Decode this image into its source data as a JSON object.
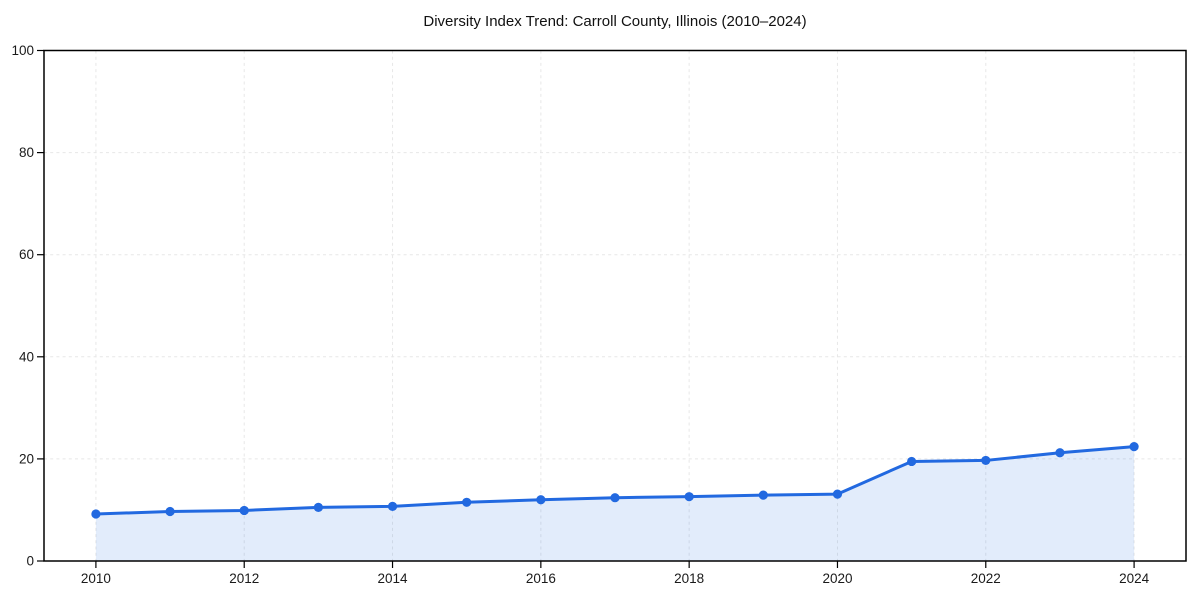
{
  "chart_data": {
    "type": "line",
    "title": "Diversity Index Trend: Carroll County, Illinois (2010–2024)",
    "x": [
      2010,
      2011,
      2012,
      2013,
      2014,
      2015,
      2016,
      2017,
      2018,
      2019,
      2020,
      2021,
      2022,
      2023,
      2024
    ],
    "series": [
      {
        "name": "Diversity Index",
        "values": [
          9.2,
          9.7,
          9.9,
          10.5,
          10.7,
          11.5,
          12.0,
          12.4,
          12.6,
          12.9,
          13.1,
          19.5,
          19.7,
          21.2,
          22.4
        ]
      }
    ],
    "xlabel": "",
    "ylabel": "",
    "xlim": [
      2009.3,
      2024.7
    ],
    "ylim": [
      0,
      100
    ],
    "xticks": [
      2010,
      2012,
      2014,
      2016,
      2018,
      2020,
      2022,
      2024
    ],
    "yticks": [
      0,
      20,
      40,
      60,
      80,
      100
    ],
    "grid": true,
    "grid_style": "dashed",
    "legend": "none",
    "area_fill": true,
    "marker": "circle",
    "colors": {
      "line": "#2269e0",
      "area_fill": "rgba(34,105,224,0.13)",
      "grid": "#e7e7e7",
      "spine": "#000000",
      "tick_label": "#1a1a1a",
      "title": "#111111",
      "background": "#ffffff"
    }
  }
}
